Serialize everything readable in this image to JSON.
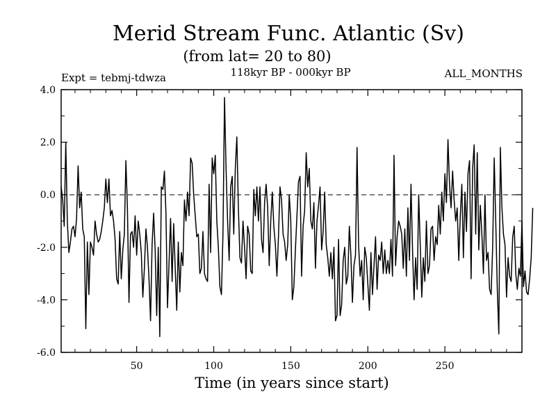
{
  "chart_data": {
    "type": "line",
    "title": "Merid Stream Func. Atlantic (Sv)",
    "subtitle": "(from lat= 20 to 80)",
    "expt_label": "Expt = tebmj-tdwza",
    "period_label": "118kyr BP - 000kyr BP",
    "months_label": "ALL_MONTHS",
    "xlabel": "Time (in years since start)",
    "ylabel": "",
    "xlim": [
      1,
      300
    ],
    "ylim": [
      -6,
      4
    ],
    "x_ticks": [
      50,
      100,
      150,
      200,
      250
    ],
    "x_tick_labels": [
      "50",
      "100",
      "150",
      "200",
      "250"
    ],
    "y_ticks": [
      -6,
      -4,
      -2,
      0,
      2,
      4
    ],
    "y_tick_labels": [
      "-6.0",
      "-4.0",
      "-2.0",
      "0.0",
      "2.0",
      "4.0"
    ],
    "zero_line": true,
    "series": [
      {
        "name": "Merid Stream Func. Atlantic",
        "x_start": 1,
        "x_step": 1,
        "values": [
          0.3,
          -0.2,
          -1.2,
          2.0,
          -1.0,
          -2.2,
          -1.8,
          -1.3,
          -1.2,
          -1.6,
          -0.9,
          1.1,
          -0.5,
          0.1,
          -1.3,
          -1.6,
          -5.1,
          -1.8,
          -3.8,
          -1.8,
          -2.0,
          -2.3,
          -1.0,
          -1.5,
          -1.8,
          -1.7,
          -1.4,
          -1.0,
          -0.5,
          0.6,
          -0.3,
          0.6,
          -0.8,
          -0.6,
          -1.0,
          -1.7,
          -3.2,
          -3.4,
          -1.4,
          -3.2,
          -2.1,
          -1.5,
          1.3,
          -0.5,
          -4.1,
          -1.5,
          -1.4,
          -2.0,
          -0.8,
          -2.3,
          -1.0,
          -1.5,
          -2.2,
          -3.9,
          -2.8,
          -1.3,
          -2.0,
          -3.2,
          -4.8,
          -1.9,
          -0.7,
          -2.1,
          -4.6,
          -2.0,
          -5.4,
          0.3,
          0.2,
          0.9,
          -0.7,
          -4.3,
          -2.6,
          -0.9,
          -3.3,
          -1.1,
          -2.8,
          -4.4,
          -1.8,
          -3.7,
          -2.2,
          -2.7,
          -0.2,
          -1.0,
          0.1,
          -0.8,
          1.4,
          1.2,
          0.0,
          -0.8,
          -1.6,
          -1.5,
          -3.0,
          -2.8,
          -1.4,
          -3.0,
          -3.2,
          -3.3,
          0.4,
          -2.2,
          1.4,
          0.8,
          1.5,
          -1.0,
          -2.0,
          -3.5,
          -3.8,
          -1.5,
          3.7,
          1.0,
          -1.0,
          -2.5,
          0.3,
          0.7,
          -1.5,
          1.0,
          2.2,
          -0.5,
          -2.4,
          -2.6,
          -1.0,
          -2.0,
          -3.2,
          -1.2,
          -1.5,
          -2.9,
          -3.0,
          0.2,
          -0.8,
          0.3,
          -1.0,
          0.3,
          -1.7,
          -2.2,
          -0.3,
          0.4,
          -0.5,
          -2.7,
          -1.0,
          0.1,
          -1.2,
          -1.9,
          -3.1,
          -1.6,
          0.3,
          -0.2,
          -1.5,
          -1.8,
          -2.5,
          -1.9,
          0.0,
          -1.0,
          -4.0,
          -3.5,
          -2.1,
          -0.8,
          0.5,
          0.7,
          -3.1,
          -1.2,
          -0.6,
          1.6,
          0.3,
          1.0,
          -1.0,
          -1.3,
          -0.3,
          -2.8,
          -1.0,
          -0.4,
          0.3,
          -2.1,
          -1.4,
          0.1,
          -1.9,
          -2.4,
          -3.1,
          -2.2,
          -3.2,
          -2.0,
          -4.8,
          -4.6,
          -1.7,
          -4.6,
          -4.2,
          -2.5,
          -2.0,
          -3.4,
          -3.1,
          -1.2,
          -2.3,
          -4.1,
          -2.7,
          -2.3,
          1.8,
          -1.9,
          -3.1,
          -2.5,
          -4.0,
          -2.0,
          -2.4,
          -3.4,
          -4.4,
          -2.2,
          -3.8,
          -2.7,
          -1.6,
          -3.6,
          -2.3,
          -2.5,
          -1.8,
          -3.0,
          -2.1,
          -3.0,
          -2.5,
          -3.0,
          -1.7,
          -3.1,
          1.5,
          -2.7,
          -1.6,
          -1.0,
          -1.2,
          -1.5,
          -2.8,
          -1.3,
          -3.1,
          -0.5,
          -2.5,
          0.4,
          -2.1,
          -4.0,
          -2.4,
          -3.6,
          0.0,
          -1.9,
          -3.9,
          -2.4,
          -3.3,
          -1.0,
          -3.0,
          -2.7,
          -1.3,
          -1.2,
          -2.5,
          -1.6,
          -1.9,
          -0.4,
          -1.5,
          0.1,
          -1.0,
          0.8,
          -0.3,
          2.1,
          0.4,
          -0.5,
          0.9,
          -0.2,
          -1.0,
          -0.5,
          -2.5,
          -0.8,
          0.4,
          -2.4,
          0.1,
          -1.4,
          0.8,
          1.3,
          -3.2,
          1.0,
          1.9,
          -1.5,
          1.6,
          -2.1,
          -0.4,
          -1.5,
          -3.0,
          0.0,
          -2.5,
          -2.2,
          -3.6,
          -3.8,
          -2.0,
          1.4,
          -1.0,
          -3.6,
          -5.3,
          1.8,
          -0.5,
          -1.5,
          -1.9,
          -3.9,
          -2.4,
          -3.1,
          -3.3,
          -1.6,
          -1.2,
          -3.0,
          -3.6,
          -2.8,
          -3.1,
          -1.0,
          -3.5,
          -2.9,
          -3.7,
          -3.8,
          -3.2,
          -2.4,
          -0.5
        ]
      }
    ]
  }
}
